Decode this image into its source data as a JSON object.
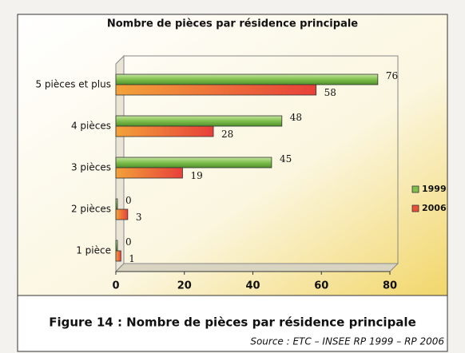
{
  "chart_data": {
    "type": "hbar",
    "title": "Nombre de pièces par résidence principale",
    "categories": [
      "1 pièce",
      "2 pièces",
      "3 pièces",
      "4 pièces",
      "5 pièces et plus"
    ],
    "series": [
      {
        "name": "1999",
        "color": "#7fbf4d",
        "values": [
          0,
          0,
          45,
          48,
          76
        ]
      },
      {
        "name": "2006",
        "color": "#e8503a",
        "values": [
          1,
          3,
          19,
          28,
          58
        ]
      }
    ],
    "xlim": [
      0,
      80
    ],
    "xticks": [
      0,
      20,
      40,
      60,
      80
    ],
    "grid": false,
    "legend": "right"
  },
  "caption": "Figure 14 : Nombre de pièces par résidence principale",
  "source": "Source : ETC – INSEE RP 1999 – RP 2006"
}
